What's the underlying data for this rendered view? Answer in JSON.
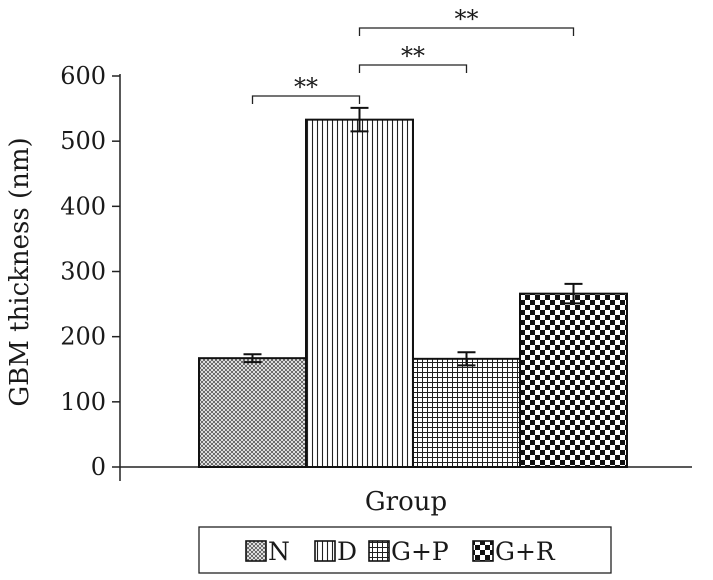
{
  "chart_data": {
    "type": "bar",
    "categories": [
      "N",
      "D",
      "G+P",
      "G+R"
    ],
    "values": [
      167,
      533,
      166,
      266
    ],
    "errors": [
      6,
      18,
      10,
      15
    ],
    "ylabel": "GBM thickness (nm)",
    "xlabel": "Group",
    "ylim": [
      0,
      600
    ],
    "yticks": [
      0,
      100,
      200,
      300,
      400,
      500,
      600
    ],
    "legend": {
      "placement": "bottom",
      "entries": [
        {
          "label": "N",
          "pattern": "crosshatch-fine"
        },
        {
          "label": "D",
          "pattern": "vertical-lines"
        },
        {
          "label": "G+P",
          "pattern": "grid"
        },
        {
          "label": "G+R",
          "pattern": "checkerboard"
        }
      ]
    },
    "significance": [
      {
        "from": 0,
        "to": 1,
        "label": "**",
        "level": 0
      },
      {
        "from": 1,
        "to": 2,
        "label": "**",
        "level": 1
      },
      {
        "from": 1,
        "to": 3,
        "label": "**",
        "level": 2
      }
    ],
    "grid": false
  }
}
